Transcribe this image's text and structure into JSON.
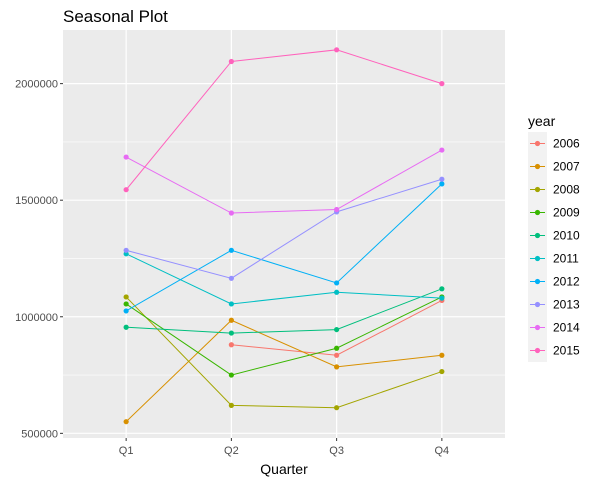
{
  "chart_data": {
    "type": "line",
    "title": "Seasonal Plot",
    "xlabel": "Quarter",
    "ylabel": "",
    "categories": [
      "Q1",
      "Q2",
      "Q3",
      "Q4"
    ],
    "ylim": [
      480000,
      2230000
    ],
    "y_ticks": [
      {
        "value": 500000,
        "label": "500000"
      },
      {
        "value": 1000000,
        "label": "1000000"
      },
      {
        "value": 1500000,
        "label": "1500000"
      },
      {
        "value": 2000000,
        "label": "2000000"
      }
    ],
    "grid": true,
    "legend": {
      "title": "year",
      "position": "right"
    },
    "series": [
      {
        "name": "2006",
        "color": "#F8766D",
        "values": [
          null,
          880000,
          835000,
          1070000
        ]
      },
      {
        "name": "2007",
        "color": "#D89000",
        "values": [
          550000,
          985000,
          785000,
          835000
        ]
      },
      {
        "name": "2008",
        "color": "#A3A500",
        "values": [
          1085000,
          620000,
          610000,
          765000
        ]
      },
      {
        "name": "2009",
        "color": "#39B600",
        "values": [
          1055000,
          750000,
          865000,
          1085000
        ]
      },
      {
        "name": "2010",
        "color": "#00BF7D",
        "values": [
          955000,
          930000,
          945000,
          1120000
        ]
      },
      {
        "name": "2011",
        "color": "#00BFC4",
        "values": [
          1270000,
          1055000,
          1105000,
          1080000
        ]
      },
      {
        "name": "2012",
        "color": "#00B0F6",
        "values": [
          1025000,
          1285000,
          1145000,
          1570000
        ]
      },
      {
        "name": "2013",
        "color": "#9590FF",
        "values": [
          1285000,
          1165000,
          1450000,
          1590000
        ]
      },
      {
        "name": "2014",
        "color": "#E76BF3",
        "values": [
          1685000,
          1445000,
          1460000,
          1715000
        ]
      },
      {
        "name": "2015",
        "color": "#FF62BC",
        "values": [
          1545000,
          2095000,
          2145000,
          2000000
        ]
      }
    ]
  }
}
